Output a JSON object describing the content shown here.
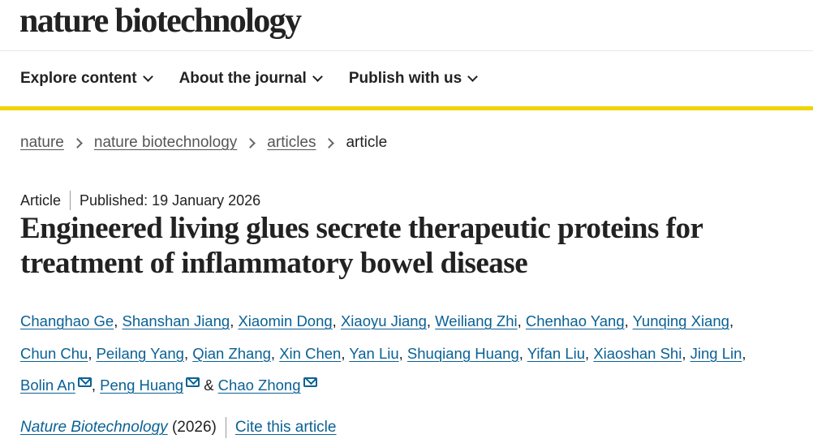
{
  "logo": "nature biotechnology",
  "nav": [
    {
      "label": "Explore content"
    },
    {
      "label": "About the journal"
    },
    {
      "label": "Publish with us"
    }
  ],
  "breadcrumb": [
    "nature",
    "nature biotechnology",
    "articles",
    "article"
  ],
  "meta": {
    "type": "Article",
    "published": "Published: 19 January 2026"
  },
  "title": "Engineered living glues secrete therapeutic proteins for treatment of inflammatory bowel disease",
  "authors": [
    [
      "Changhao Ge",
      "Shanshan Jiang",
      "Xiaomin Dong",
      "Xiaoyu Jiang",
      "Weiliang Zhi",
      "Chenhao Yang",
      "Yunqing Xiang"
    ],
    [
      "Chun Chu",
      "Peilang Yang",
      "Qian Zhang",
      "Xin Chen",
      "Yan Liu",
      "Shuqiang Huang",
      "Yifan Liu",
      "Xiaoshan Shi",
      "Jing Lin"
    ],
    [
      "Bolin An",
      "Peng Huang",
      "Chao Zhong"
    ]
  ],
  "ampersand": "&",
  "citation": {
    "journal": "Nature Biotechnology",
    "year": "(2026)",
    "cite_label": "Cite this article"
  },
  "colors": {
    "link": "#0a6195",
    "accent_bar": "#f0d400"
  }
}
